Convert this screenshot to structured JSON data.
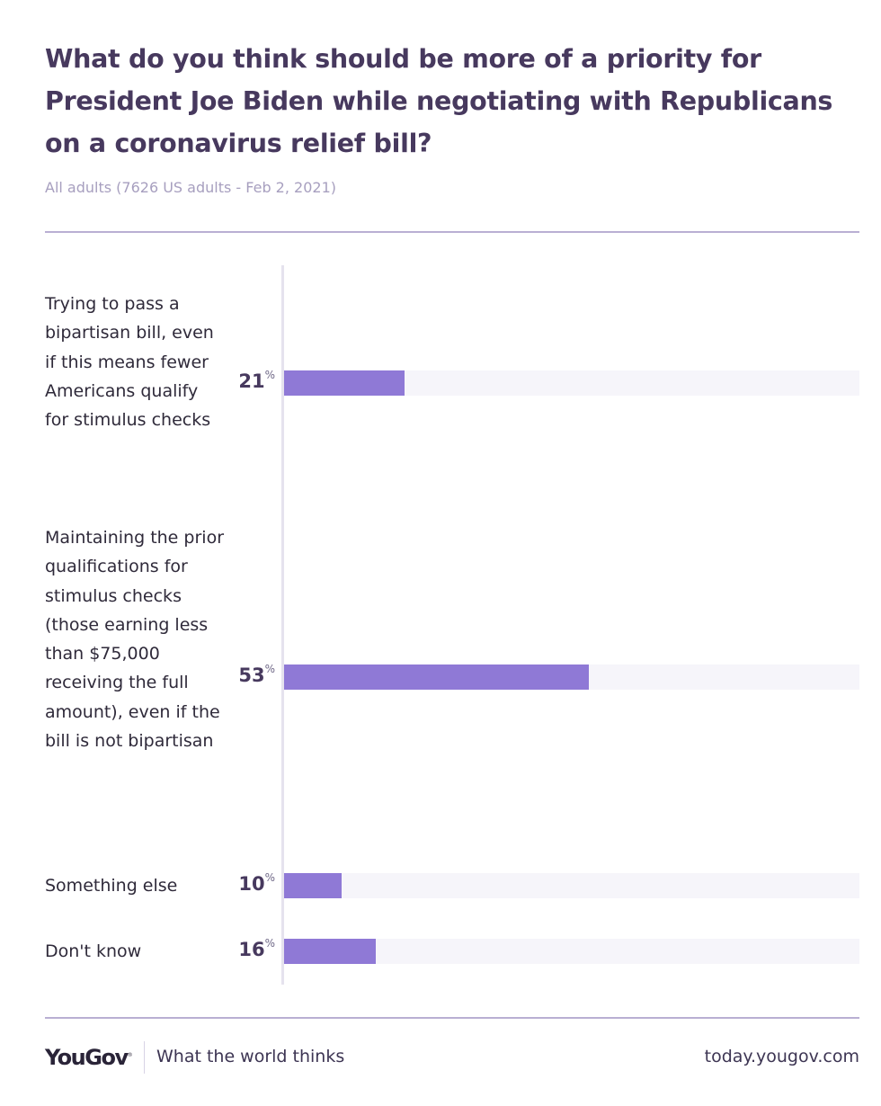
{
  "chart_data": {
    "type": "bar",
    "orientation": "horizontal",
    "title": "What do you think should be more of a priority for President Joe Biden while negotiating with Republicans on a coronavirus relief bill?",
    "subtitle": "All adults (7626 US adults - Feb 2, 2021)",
    "categories": [
      "Trying to pass a bipartisan bill, even if this means fewer Americans qualify for stimulus checks",
      "Maintaining the prior qualifications for stimulus checks (those earning less than $75,000 receiving the full amount), even if the bill is not bipartisan",
      "Something else",
      "Don't know"
    ],
    "values": [
      21,
      53,
      10,
      16
    ],
    "unit": "%",
    "xlim": [
      0,
      100
    ],
    "grid": false,
    "bar_color": "#8f79d6",
    "track_color": "#f6f5fa"
  },
  "footer": {
    "logo": "YouGov",
    "tagline": "What the world thinks",
    "url": "today.yougov.com"
  }
}
